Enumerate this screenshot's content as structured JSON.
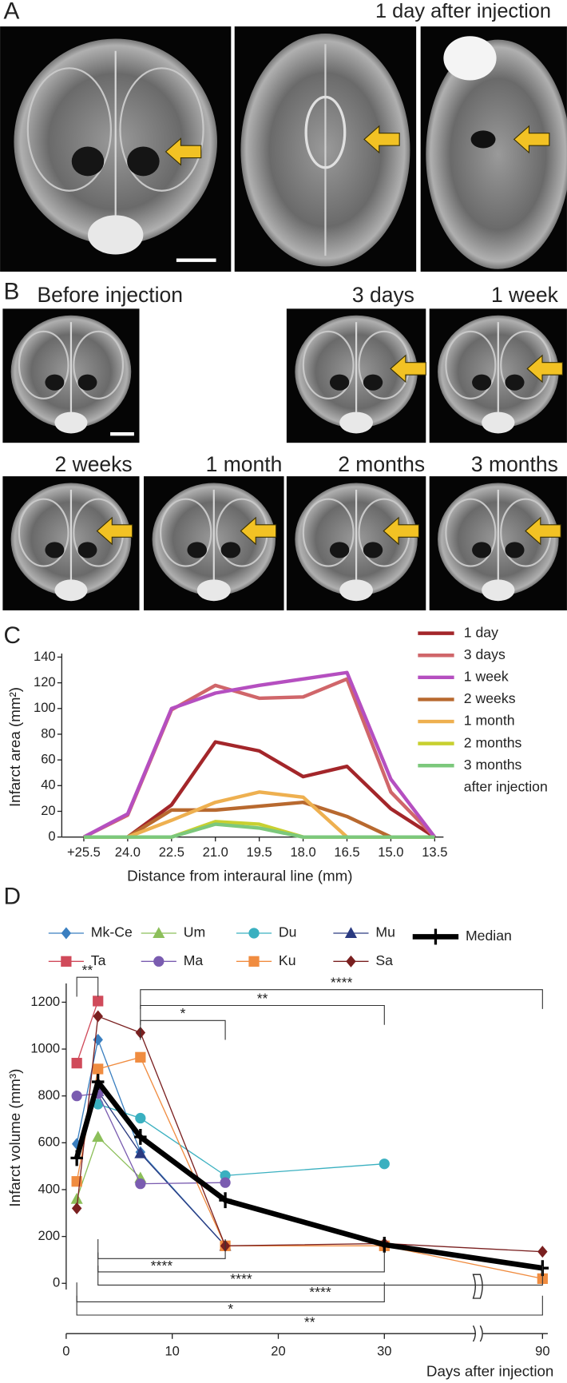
{
  "panel_a": {
    "label": "A",
    "title": "1 day after injection"
  },
  "panel_b": {
    "label": "B",
    "images": [
      "Before injection",
      "3 days",
      "1 week",
      "2 weeks",
      "1 month",
      "2 months",
      "3 months"
    ]
  },
  "chart_data": [
    {
      "type": "line",
      "panel": "C",
      "ylabel": "Infarct area (mm²)",
      "xlabel": "Distance from interaural line (mm)",
      "categories": [
        "+25.5",
        "24.0",
        "22.5",
        "21.0",
        "19.5",
        "18.0",
        "16.5",
        "15.0",
        "13.5"
      ],
      "ylim": [
        0,
        140
      ],
      "yticks": [
        0,
        20,
        40,
        60,
        80,
        100,
        120,
        140
      ],
      "legend_note": "after injection",
      "series": [
        {
          "name": "1 day",
          "color": "#a3262a",
          "values": [
            0,
            0,
            25,
            74,
            67,
            47,
            55,
            22,
            0
          ]
        },
        {
          "name": "3 days",
          "color": "#d0666a",
          "values": [
            0,
            17,
            99,
            118,
            108,
            109,
            123,
            35,
            0
          ]
        },
        {
          "name": "1 week",
          "color": "#b54fc0",
          "values": [
            0,
            18,
            100,
            112,
            118,
            123,
            128,
            45,
            0
          ]
        },
        {
          "name": "2 weeks",
          "color": "#b8692f",
          "values": [
            0,
            0,
            21,
            21,
            24,
            27,
            16,
            0,
            0
          ]
        },
        {
          "name": "1 month",
          "color": "#eeb050",
          "values": [
            0,
            0,
            13,
            27,
            35,
            31,
            0,
            0,
            0
          ]
        },
        {
          "name": "2 months",
          "color": "#c8d030",
          "values": [
            0,
            0,
            0,
            12,
            10,
            0,
            0,
            0,
            0
          ]
        },
        {
          "name": "3 months",
          "color": "#7cc87c",
          "values": [
            0,
            0,
            0,
            10,
            7,
            0,
            0,
            0,
            0
          ]
        }
      ]
    },
    {
      "type": "line",
      "panel": "D",
      "ylabel": "Infarct volume (mm³)",
      "xlabel": "Days after injection",
      "x": [
        1,
        3,
        7,
        15,
        30,
        90
      ],
      "xlim": [
        0,
        90
      ],
      "xticks": [
        0,
        10,
        20,
        30,
        90
      ],
      "xbreak": [
        38,
        85
      ],
      "ylim": [
        0,
        1250
      ],
      "yticks": [
        0,
        200,
        400,
        600,
        800,
        1000,
        1200
      ],
      "series": [
        {
          "name": "Mk-Ce",
          "color": "#3a7fc0",
          "marker": "diamond",
          "values": [
            595,
            1040,
            560,
            160,
            null,
            null
          ]
        },
        {
          "name": "Um",
          "color": "#8cbf5a",
          "marker": "triangle",
          "values": [
            360,
            625,
            450,
            null,
            null,
            null
          ]
        },
        {
          "name": "Du",
          "color": "#3ab0c0",
          "marker": "circle",
          "values": [
            null,
            765,
            705,
            460,
            510,
            null
          ]
        },
        {
          "name": "Mu",
          "color": "#2a3a80",
          "marker": "triangle",
          "values": [
            null,
            820,
            555,
            160,
            null,
            null
          ]
        },
        {
          "name": "Ta",
          "color": "#d04a5a",
          "marker": "square",
          "values": [
            940,
            1205,
            null,
            null,
            null,
            null
          ]
        },
        {
          "name": "Ma",
          "color": "#7a5cb0",
          "marker": "circle",
          "values": [
            800,
            810,
            425,
            430,
            null,
            null
          ]
        },
        {
          "name": "Ku",
          "color": "#f08c40",
          "marker": "square",
          "values": [
            435,
            915,
            965,
            160,
            160,
            20
          ]
        },
        {
          "name": "Sa",
          "color": "#7a2020",
          "marker": "diamond",
          "values": [
            320,
            1140,
            1070,
            160,
            170,
            135
          ]
        },
        {
          "name": "Median",
          "color": "#000000",
          "marker": "cross",
          "values": [
            535,
            860,
            625,
            355,
            165,
            65
          ]
        }
      ],
      "brackets": [
        {
          "from": 1,
          "to": 3,
          "label": "**",
          "side": "top"
        },
        {
          "from": 7,
          "to": 90,
          "label": "****",
          "side": "top"
        },
        {
          "from": 7,
          "to": 30,
          "label": "**",
          "side": "top"
        },
        {
          "from": 7,
          "to": 15,
          "label": "*",
          "side": "top"
        },
        {
          "from": 3,
          "to": 15,
          "label": "****",
          "side": "bottom"
        },
        {
          "from": 3,
          "to": 30,
          "label": "****",
          "side": "bottom"
        },
        {
          "from": 3,
          "to": 90,
          "label": "****",
          "side": "bottom"
        },
        {
          "from": 1,
          "to": 30,
          "label": "*",
          "side": "bottom"
        },
        {
          "from": 1,
          "to": 90,
          "label": "**",
          "side": "bottom"
        }
      ]
    }
  ]
}
